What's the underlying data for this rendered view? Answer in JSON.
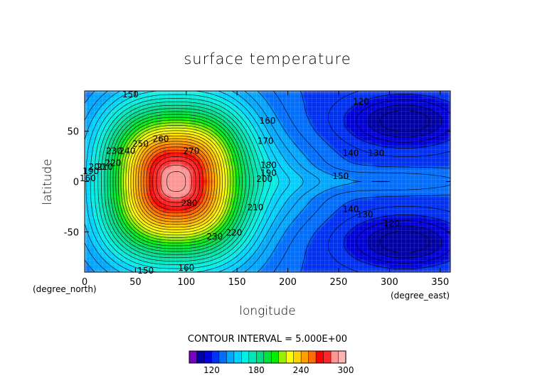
{
  "chart_data": {
    "type": "heatmap",
    "title": "surface temperature",
    "xlabel": "longitude",
    "ylabel": "latitude",
    "x_unit_label": "(degree_east)",
    "y_unit_label": "(degree_north)",
    "xlim": [
      0,
      360
    ],
    "ylim": [
      -90,
      90
    ],
    "x_ticks": [
      0,
      50,
      100,
      150,
      200,
      250,
      300,
      350
    ],
    "y_ticks": [
      -50,
      0,
      50
    ],
    "contour_interval_text": "CONTOUR INTERVAL = 5.000E+00",
    "colorbar": {
      "levels": [
        90,
        100,
        110,
        120,
        130,
        140,
        150,
        160,
        170,
        180,
        190,
        200,
        210,
        220,
        230,
        240,
        250,
        260,
        270,
        280,
        290,
        300
      ],
      "colors": [
        "#7a00c8",
        "#0000a8",
        "#0000dc",
        "#0032f5",
        "#006eff",
        "#00a8ff",
        "#00d2ff",
        "#00f0e6",
        "#00e6b4",
        "#00dc82",
        "#00e13c",
        "#00f000",
        "#96f000",
        "#ffff00",
        "#ffd200",
        "#ffa000",
        "#ff6e00",
        "#ff0000",
        "#ff2828",
        "#ff9696",
        "#ffb4b4"
      ],
      "tick_labels": [
        "120",
        "180",
        "240",
        "300"
      ]
    },
    "hot_center": {
      "lon": 90,
      "lat": 0,
      "value": 280
    },
    "cold_centers": [
      {
        "lon": 315,
        "lat": 60,
        "value": 110
      },
      {
        "lon": 315,
        "lat": -60,
        "value": 110
      }
    ],
    "contour_labels": [
      {
        "text": "150",
        "lon": 45,
        "lat": 86
      },
      {
        "text": "160",
        "lon": 180,
        "lat": 60
      },
      {
        "text": "270",
        "lon": 105,
        "lat": 30
      },
      {
        "text": "260",
        "lon": 75,
        "lat": 42
      },
      {
        "text": "250",
        "lon": 55,
        "lat": 37
      },
      {
        "text": "240",
        "lon": 42,
        "lat": 30
      },
      {
        "text": "230",
        "lon": 29,
        "lat": 30
      },
      {
        "text": "220",
        "lon": 28,
        "lat": 18
      },
      {
        "text": "210",
        "lon": 20,
        "lat": 14
      },
      {
        "text": "200",
        "lon": 12,
        "lat": 14
      },
      {
        "text": "190",
        "lon": 6,
        "lat": 10
      },
      {
        "text": "160",
        "lon": 3,
        "lat": 3
      },
      {
        "text": "170",
        "lon": 178,
        "lat": 40
      },
      {
        "text": "180",
        "lon": 181,
        "lat": 16
      },
      {
        "text": "190",
        "lon": 181,
        "lat": 8
      },
      {
        "text": "200",
        "lon": 177,
        "lat": 2
      },
      {
        "text": "210",
        "lon": 168,
        "lat": -26
      },
      {
        "text": "220",
        "lon": 147,
        "lat": -51
      },
      {
        "text": "230",
        "lon": 128,
        "lat": -55
      },
      {
        "text": "280",
        "lon": 103,
        "lat": -22
      },
      {
        "text": "150",
        "lon": 252,
        "lat": 5
      },
      {
        "text": "140",
        "lon": 262,
        "lat": 28
      },
      {
        "text": "130",
        "lon": 287,
        "lat": 28
      },
      {
        "text": "120",
        "lon": 272,
        "lat": 79
      },
      {
        "text": "140",
        "lon": 262,
        "lat": -28
      },
      {
        "text": "130",
        "lon": 276,
        "lat": -33
      },
      {
        "text": "120",
        "lon": 302,
        "lat": -42
      },
      {
        "text": "150",
        "lon": 60,
        "lat": -89
      },
      {
        "text": "160",
        "lon": 100,
        "lat": -86
      }
    ]
  }
}
